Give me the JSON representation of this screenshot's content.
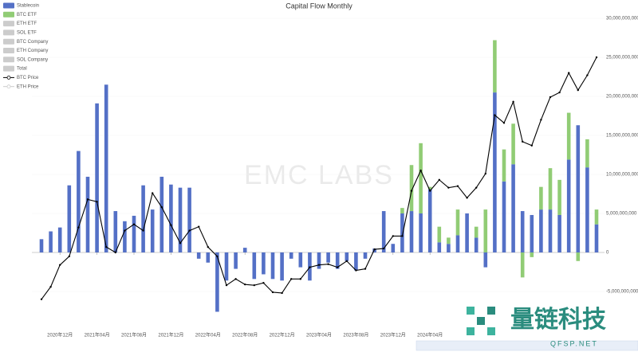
{
  "chart_data": {
    "type": "bar",
    "title": "Capital Flow Monthly",
    "watermark": "EMC LABS",
    "logo_text": "量链科技",
    "logo_subtext": "QFSP.NET",
    "categories": [
      null,
      null,
      "2020年12月",
      null,
      null,
      null,
      "2021年04月",
      null,
      null,
      null,
      "2021年08月",
      null,
      null,
      null,
      "2021年12月",
      null,
      null,
      null,
      "2022年04月",
      null,
      null,
      null,
      "2022年08月",
      null,
      null,
      null,
      "2022年12月",
      null,
      null,
      null,
      "2023年04月",
      null,
      null,
      null,
      "2023年08月",
      null,
      null,
      null,
      "2023年12月",
      null,
      null,
      null,
      "2024年04月",
      null,
      null,
      null,
      null,
      null,
      null,
      null,
      null,
      null,
      null,
      null,
      null,
      null,
      null,
      null,
      null,
      null,
      null
    ],
    "series": [
      {
        "name": "Stablecoin",
        "color": "#5470c6",
        "type": "bar",
        "values": [
          1700000000.0,
          2700000000.0,
          3200000000.0,
          8600000000.0,
          13000000000.0,
          9700000000.0,
          19100000000.0,
          21500000000.0,
          5300000000.0,
          4000000000.0,
          4700000000.0,
          8600000000.0,
          5500000000.0,
          9700000000.0,
          8700000000.0,
          8300000000.0,
          8300000000.0,
          -800000000.0,
          -1300000000.0,
          -7600000000.0,
          -3600000000.0,
          -2100000000.0,
          600000000.0,
          -3400000000.0,
          -2800000000.0,
          -3400000000.0,
          -3600000000.0,
          -800000000.0,
          -1900000000.0,
          -3600000000.0,
          -2100000000.0,
          -1300000000.0,
          -2100000000.0,
          -1100000000.0,
          -2300000000.0,
          -800000000.0,
          500000000.0,
          5300000000.0,
          1100000000.0,
          5000000000.0,
          5300000000.0,
          5000000000.0,
          8100000000.0,
          1300000000.0,
          1100000000.0,
          2200000000.0,
          5000000000.0,
          1900000000.0,
          -1900000000.0,
          20500000000.0,
          9100000000.0,
          11300000000.0,
          5300000000.0,
          4800000000.0,
          5500000000.0,
          5500000000.0,
          4800000000.0,
          11900000000.0,
          16300000000.0,
          10900000000.0,
          3600000000.0
        ]
      },
      {
        "name": "BTC ETF",
        "color": "#91cc75",
        "type": "bar",
        "values": [
          null,
          null,
          null,
          null,
          null,
          null,
          null,
          null,
          null,
          null,
          null,
          null,
          null,
          null,
          null,
          null,
          null,
          null,
          null,
          null,
          null,
          null,
          null,
          null,
          null,
          null,
          null,
          null,
          null,
          null,
          null,
          null,
          null,
          null,
          null,
          null,
          null,
          null,
          null,
          700000000.0,
          5900000000.0,
          9000000000.0,
          300000000.0,
          2000000000.0,
          800000000.0,
          3300000000.0,
          null,
          1400000000.0,
          5500000000.0,
          6700000000.0,
          4100000000.0,
          5200000000.0,
          -3200000000.0,
          -600000000.0,
          2900000000.0,
          5300000000.0,
          4500000000.0,
          6000000000.0,
          -1100000000.0,
          3600000000.0,
          1900000000.0
        ]
      },
      {
        "name": "BTC Price",
        "color": "#000000",
        "type": "line",
        "values": [
          -6000000000.0,
          -4400000000.0,
          -1600000000.0,
          -500000000.0,
          3200000000.0,
          6800000000.0,
          6500000000.0,
          700000000.0,
          0,
          2800000000.0,
          3600000000.0,
          2800000000.0,
          7600000000.0,
          5800000000.0,
          3500000000.0,
          1200000000.0,
          2800000000.0,
          3300000000.0,
          700000000.0,
          -500000000.0,
          -4200000000.0,
          -3400000000.0,
          -4100000000.0,
          -4200000000.0,
          -3900000000.0,
          -5100000000.0,
          -5200000000.0,
          -3400000000.0,
          -3400000000.0,
          -1900000000.0,
          -1600000000.0,
          -1500000000.0,
          -1900000000.0,
          -1100000000.0,
          -2300000000.0,
          -2100000000.0,
          400000000.0,
          500000000.0,
          2100000000.0,
          2100000000.0,
          7900000000.0,
          10500000000.0,
          7900000000.0,
          9300000000.0,
          8300000000.0,
          8500000000.0,
          7000000000.0,
          8300000000.0,
          10100000000.0,
          17600000000.0,
          16600000000.0,
          19300000000.0,
          14200000000.0,
          13700000000.0,
          17000000000.0,
          19900000000.0,
          20500000000.0,
          23000000000.0,
          20800000000.0,
          22700000000.0,
          25000000000.0
        ]
      }
    ],
    "legend_disabled": [
      "ETH ETF",
      "SOL ETF",
      "BTC Company",
      "ETH Company",
      "SOL Company",
      "Total",
      "ETH Price"
    ],
    "ylim": [
      -8000000000.0,
      30000000000.0
    ],
    "yticks": [
      {
        "value": 30000000000,
        "label": "30,000,000,000"
      },
      {
        "value": 25000000000,
        "label": "25,000,000,000"
      },
      {
        "value": 20000000000,
        "label": "20,000,000,000"
      },
      {
        "value": 15000000000,
        "label": "15,000,000,000"
      },
      {
        "value": 10000000000,
        "label": "10,000,000,000"
      },
      {
        "value": 5000000000,
        "label": "5,000,000,000"
      },
      0,
      {
        "value": -5000000000,
        "label": "-5,000,000,000"
      }
    ],
    "legend_position": "top-left",
    "grid": true
  }
}
